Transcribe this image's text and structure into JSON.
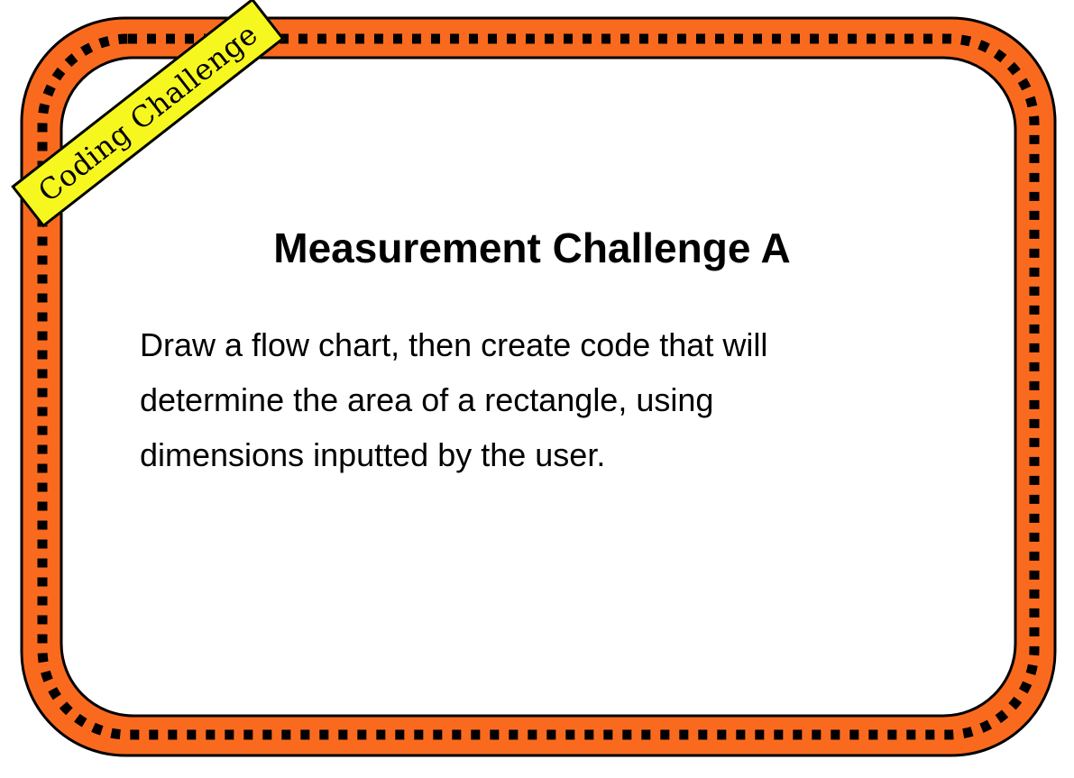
{
  "card": {
    "banner_label": "Coding Challenge",
    "title": "Measurement Challenge A",
    "body_lines": [
      "Draw a flow chart, then create code that will",
      "determine the area of a rectangle, using",
      "dimensions inputted by the user."
    ]
  },
  "colors": {
    "frame_fill": "#fa6a1e",
    "frame_outline": "#000000",
    "dashes": "#000000",
    "card_background": "#ffffff",
    "banner_fill": "#f7f720",
    "text": "#000000"
  }
}
